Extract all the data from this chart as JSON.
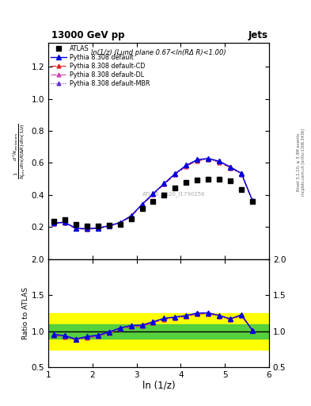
{
  "title": "13000 GeV pp",
  "title_right": "Jets",
  "panel_title": "ln(1/z) (Lund plane 0.67<ln(RΔ R)<1.00)",
  "xlabel": "ln (1/z)",
  "ylabel_ratio": "Ratio to ATLAS",
  "watermark": "ATLAS_2020_I1790256",
  "rivet_label": "Rivet 3.1.10, ≥ 3.3M events",
  "mcplots_label": "mcplots.cern.ch [arXiv:1306.3436]",
  "atlas_x": [
    1.125,
    1.375,
    1.625,
    1.875,
    2.125,
    2.375,
    2.625,
    2.875,
    3.125,
    3.375,
    3.625,
    3.875,
    4.125,
    4.375,
    4.625,
    4.875,
    5.125,
    5.375,
    5.625
  ],
  "atlas_y": [
    0.235,
    0.245,
    0.215,
    0.205,
    0.205,
    0.21,
    0.218,
    0.25,
    0.315,
    0.36,
    0.4,
    0.445,
    0.48,
    0.495,
    0.5,
    0.5,
    0.49,
    0.435,
    0.36
  ],
  "py_x": [
    1.125,
    1.375,
    1.625,
    1.875,
    2.125,
    2.375,
    2.625,
    2.875,
    3.125,
    3.375,
    3.625,
    3.875,
    4.125,
    4.375,
    4.625,
    4.875,
    5.125,
    5.375,
    5.625
  ],
  "py_default_y": [
    0.225,
    0.23,
    0.192,
    0.19,
    0.194,
    0.208,
    0.228,
    0.27,
    0.342,
    0.408,
    0.472,
    0.533,
    0.585,
    0.62,
    0.628,
    0.61,
    0.575,
    0.535,
    0.365
  ],
  "py_cd_y": [
    0.222,
    0.225,
    0.19,
    0.187,
    0.191,
    0.205,
    0.224,
    0.265,
    0.337,
    0.403,
    0.467,
    0.527,
    0.579,
    0.614,
    0.622,
    0.604,
    0.57,
    0.53,
    0.362
  ],
  "py_dl_y": [
    0.223,
    0.227,
    0.191,
    0.188,
    0.192,
    0.206,
    0.226,
    0.267,
    0.339,
    0.405,
    0.469,
    0.529,
    0.581,
    0.616,
    0.624,
    0.606,
    0.572,
    0.532,
    0.363
  ],
  "py_mbr_y": [
    0.226,
    0.232,
    0.193,
    0.191,
    0.195,
    0.209,
    0.229,
    0.271,
    0.343,
    0.409,
    0.473,
    0.534,
    0.586,
    0.621,
    0.629,
    0.611,
    0.576,
    0.536,
    0.366
  ],
  "ratio_default_y": [
    0.957,
    0.939,
    0.893,
    0.927,
    0.946,
    0.99,
    1.046,
    1.08,
    1.086,
    1.133,
    1.18,
    1.198,
    1.219,
    1.253,
    1.256,
    1.22,
    1.173,
    1.23,
    1.014
  ],
  "ratio_cd_y": [
    0.945,
    0.918,
    0.884,
    0.912,
    0.932,
    0.976,
    1.028,
    1.06,
    1.07,
    1.119,
    1.168,
    1.184,
    1.206,
    1.24,
    1.244,
    1.208,
    1.163,
    1.218,
    1.006
  ],
  "ratio_dl_y": [
    0.949,
    0.927,
    0.888,
    0.918,
    0.937,
    0.981,
    1.037,
    1.068,
    1.076,
    1.125,
    1.172,
    1.19,
    1.211,
    1.245,
    1.248,
    1.212,
    1.167,
    1.223,
    1.008
  ],
  "ratio_mbr_y": [
    0.962,
    0.947,
    0.898,
    0.932,
    0.951,
    0.995,
    1.05,
    1.084,
    1.089,
    1.136,
    1.183,
    1.2,
    1.221,
    1.255,
    1.258,
    1.222,
    1.175,
    1.232,
    1.017
  ],
  "band_x_lo": 1.0,
  "band_x_hi": 6.0,
  "band_yellow_lo": 0.75,
  "band_yellow_hi": 1.25,
  "band_green_lo": 0.9,
  "band_green_hi": 1.1,
  "color_default": "#0000dd",
  "color_cd": "#dd2020",
  "color_dl": "#cc44aa",
  "color_mbr": "#6633cc",
  "xlim": [
    1.0,
    6.0
  ],
  "ylim_main": [
    0.0,
    1.35
  ],
  "ylim_ratio": [
    0.5,
    2.0
  ],
  "yticks_main": [
    0.2,
    0.4,
    0.6,
    0.8,
    1.0,
    1.2
  ],
  "yticks_ratio": [
    0.5,
    1.0,
    1.5,
    2.0
  ],
  "xticks": [
    1,
    2,
    3,
    4,
    5,
    6
  ]
}
